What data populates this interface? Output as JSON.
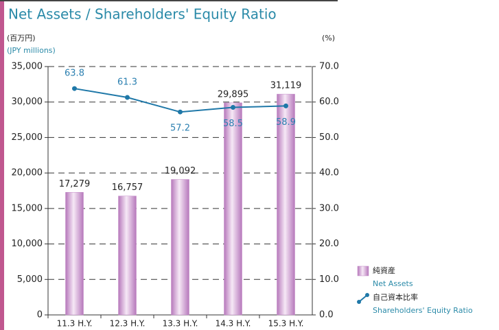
{
  "chart_data": {
    "type": "bar",
    "title": "Net Assets / Shareholders' Equity Ratio",
    "y_unit": "(百万円)",
    "y_unit_en": "(JPY millions)",
    "y2_unit": "(%)",
    "categories": [
      "11.3 H.Y.",
      "12.3 H.Y.",
      "13.3 H.Y.",
      "14.3 H.Y.",
      "15.3 H.Y."
    ],
    "series": [
      {
        "name": "純資産",
        "name_en": "Net Assets",
        "type": "bar",
        "color": "#c48ac8",
        "values": [
          17279,
          16757,
          19092,
          29895,
          31119
        ],
        "value_labels": [
          "17,279",
          "16,757",
          "19,092",
          "29,895",
          "31,119"
        ]
      },
      {
        "name": "自己資本比率",
        "name_en": "Shareholders' Equity Ratio",
        "type": "line",
        "axis": "y2",
        "color": "#1f78a8",
        "values": [
          63.8,
          61.3,
          57.2,
          58.5,
          58.9
        ]
      }
    ],
    "ylim": [
      0,
      35000
    ],
    "yticks": [
      0,
      {
        "value": 5000,
        "label": "5,000"
      },
      {
        "value": 10000,
        "label": "10,000"
      },
      {
        "value": 15000,
        "label": "15,000"
      },
      {
        "value": 20000,
        "label": "20,000"
      },
      {
        "value": 25000,
        "label": "25,000"
      },
      {
        "value": 30000,
        "label": "30,000"
      },
      {
        "value": 35000,
        "label": "35,000"
      }
    ],
    "y2lim": [
      0,
      70
    ],
    "y2ticks": [
      {
        "value": 0,
        "label": "0.0"
      },
      {
        "value": 10,
        "label": "10.0"
      },
      {
        "value": 20,
        "label": "20.0"
      },
      {
        "value": 30,
        "label": "30.0"
      },
      {
        "value": 40,
        "label": "40.0"
      },
      {
        "value": 50,
        "label": "50.0"
      },
      {
        "value": 60,
        "label": "60.0"
      },
      {
        "value": 70,
        "label": "70.0"
      }
    ],
    "grid": true
  }
}
